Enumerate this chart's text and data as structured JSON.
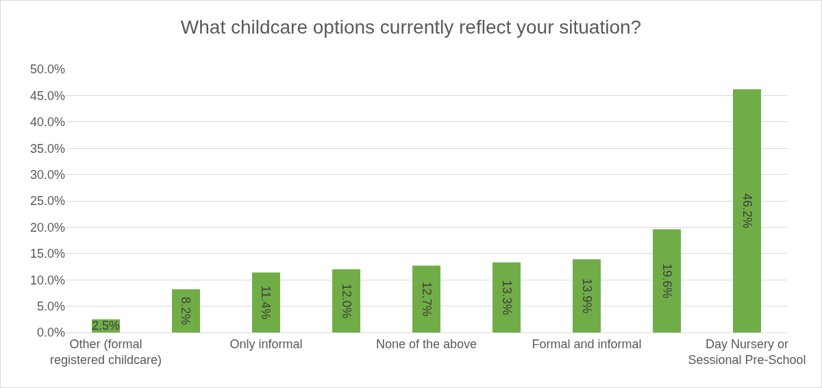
{
  "chart_data": {
    "type": "bar",
    "title": "What childcare options currently reflect your situation?",
    "categories": [
      "Other (formal registered childcare)",
      null,
      "Only informal",
      null,
      "None of the above",
      null,
      "Formal and informal",
      null,
      "Day Nursery or Sessional Pre-School"
    ],
    "values": [
      2.5,
      8.2,
      11.4,
      12.0,
      12.7,
      13.3,
      13.9,
      19.6,
      46.2
    ],
    "value_labels": [
      "2.5%",
      "8.2%",
      "11.4%",
      "12.0%",
      "12.7%",
      "13.3%",
      "13.9%",
      "19.6%",
      "46.2%"
    ],
    "color": "#70ad47",
    "ylim": [
      0,
      50
    ],
    "yticks": [
      {
        "value": 0,
        "label": "0.0%"
      },
      {
        "value": 5,
        "label": "5.0%"
      },
      {
        "value": 10,
        "label": "10.0%"
      },
      {
        "value": 15,
        "label": "15.0%"
      },
      {
        "value": 20,
        "label": "20.0%"
      },
      {
        "value": 25,
        "label": "25.0%"
      },
      {
        "value": 30,
        "label": "30.0%"
      },
      {
        "value": 35,
        "label": "35.0%"
      },
      {
        "value": 40,
        "label": "40.0%"
      },
      {
        "value": 45,
        "label": "45.0%"
      },
      {
        "value": 50,
        "label": "50.0%"
      }
    ],
    "grid": "y",
    "legend": false
  }
}
